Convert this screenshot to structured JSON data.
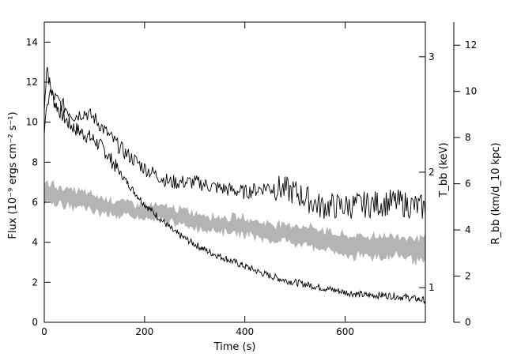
{
  "chart_data": {
    "type": "line",
    "xlabel": "Time (s)",
    "ylabel_left": "Flux (10⁻⁹ ergs cm⁻² s⁻¹)",
    "ylabel_mid": "T_bb (keV)",
    "ylabel_right": "R_bb (km/d_10 kpc)",
    "xlim": [
      0,
      760
    ],
    "ylim_flux": [
      0,
      15
    ],
    "ylim_temp": [
      0.7,
      3.3
    ],
    "ylim_radius": [
      0,
      13
    ],
    "x_ticks": [
      0,
      200,
      400,
      600
    ],
    "flux_ticks": [
      0,
      2,
      4,
      6,
      8,
      10,
      12,
      14
    ],
    "temp_ticks": [
      1,
      2,
      3
    ],
    "radius_ticks": [
      0,
      2,
      4,
      6,
      8,
      10,
      12
    ],
    "grid": false,
    "series": [
      {
        "color": "#000000",
        "x": [
          0,
          5,
          10,
          20,
          30,
          40,
          50,
          60,
          80,
          100,
          120,
          150,
          180,
          200,
          230,
          260,
          300,
          330,
          360,
          400,
          440,
          480,
          520,
          560,
          600,
          640,
          680,
          720,
          760
        ],
        "values": [
          10.5,
          13.0,
          12.0,
          11.0,
          10.6,
          10.2,
          9.9,
          9.7,
          9.4,
          9.1,
          8.6,
          7.5,
          6.5,
          5.9,
          5.2,
          4.5,
          3.9,
          3.5,
          3.2,
          2.8,
          2.4,
          2.1,
          1.9,
          1.7,
          1.5,
          1.35,
          1.35,
          1.25,
          1.1
        ]
      },
      {
        "color": "#000000",
        "x": [
          0,
          10,
          30,
          60,
          80,
          100,
          130,
          160,
          200,
          250,
          300,
          350,
          400,
          450,
          500,
          550,
          600,
          650,
          700,
          760
        ],
        "values": [
          9.5,
          11.5,
          11.0,
          10.3,
          10.5,
          10.2,
          9.3,
          8.5,
          7.7,
          7.0,
          7.0,
          6.7,
          6.5,
          6.8,
          6.5,
          5.8,
          5.8,
          5.9,
          6.0,
          5.7
        ]
      },
      {
        "color": "#b4b4b4",
        "x": [
          0,
          20,
          50,
          80,
          100,
          150,
          200,
          250,
          300,
          350,
          400,
          450,
          500,
          550,
          600,
          650,
          700,
          760
        ],
        "values": [
          6.5,
          6.4,
          6.2,
          6.1,
          5.9,
          5.7,
          5.5,
          5.4,
          5.1,
          4.9,
          4.8,
          4.5,
          4.4,
          4.2,
          3.8,
          3.8,
          3.8,
          3.6
        ],
        "band_width": [
          1.0,
          0.9,
          0.8,
          0.8,
          0.8,
          0.7,
          0.7,
          0.7,
          0.7,
          0.7,
          0.8,
          0.8,
          0.9,
          0.9,
          1.0,
          1.0,
          1.0,
          1.2
        ]
      }
    ]
  }
}
